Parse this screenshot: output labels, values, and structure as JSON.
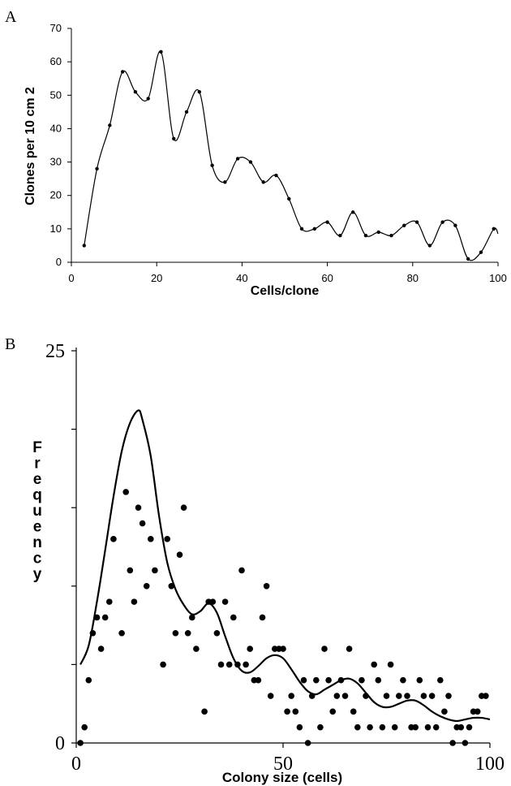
{
  "chart_data": [
    {
      "panel": "A",
      "type": "line",
      "xlabel": "Cells/clone",
      "ylabel": "Clones per 10 cm 2",
      "xlim": [
        0,
        100
      ],
      "ylim": [
        0,
        70
      ],
      "xticks": [
        0,
        20,
        40,
        60,
        80,
        100
      ],
      "yticks": [
        0,
        10,
        20,
        30,
        40,
        50,
        60,
        70
      ],
      "grid": false,
      "x": [
        3,
        6,
        9,
        12,
        15,
        18,
        21,
        24,
        27,
        30,
        33,
        36,
        39,
        42,
        45,
        48,
        51,
        54,
        57,
        60,
        63,
        66,
        69,
        72,
        75,
        78,
        81,
        84,
        87,
        90,
        93,
        96,
        99
      ],
      "y": [
        5,
        28,
        41,
        57,
        51,
        49,
        63,
        37,
        45,
        51,
        29,
        24,
        31,
        30,
        24,
        26,
        19,
        10,
        10,
        12,
        8,
        15,
        8,
        9,
        8,
        11,
        12,
        5,
        12,
        11,
        1,
        3,
        10
      ]
    },
    {
      "panel": "B",
      "type": "scatter",
      "xlabel": "Colony size (cells)",
      "ylabel": "Frequency",
      "xlim": [
        0,
        100
      ],
      "ylim": [
        0,
        25
      ],
      "xticks": [
        0,
        50,
        100
      ],
      "yticks": [
        0,
        25
      ],
      "grid": false,
      "points": [
        [
          1,
          0
        ],
        [
          2,
          1
        ],
        [
          3,
          4
        ],
        [
          4,
          7
        ],
        [
          5,
          8
        ],
        [
          6,
          6
        ],
        [
          7,
          8
        ],
        [
          8,
          9
        ],
        [
          9,
          13
        ],
        [
          11,
          7
        ],
        [
          12,
          16
        ],
        [
          13,
          11
        ],
        [
          14,
          9
        ],
        [
          15,
          15
        ],
        [
          16,
          14
        ],
        [
          17,
          10
        ],
        [
          18,
          13
        ],
        [
          19,
          11
        ],
        [
          21,
          5
        ],
        [
          22,
          13
        ],
        [
          23,
          10
        ],
        [
          24,
          7
        ],
        [
          25,
          12
        ],
        [
          26,
          15
        ],
        [
          27,
          7
        ],
        [
          28,
          8
        ],
        [
          29,
          6
        ],
        [
          31,
          2
        ],
        [
          32,
          9
        ],
        [
          33,
          9
        ],
        [
          34,
          7
        ],
        [
          35,
          5
        ],
        [
          36,
          9
        ],
        [
          37,
          5
        ],
        [
          38,
          8
        ],
        [
          39,
          5
        ],
        [
          40,
          11
        ],
        [
          41,
          5
        ],
        [
          42,
          6
        ],
        [
          43,
          4
        ],
        [
          44,
          4
        ],
        [
          45,
          8
        ],
        [
          46,
          10
        ],
        [
          47,
          3
        ],
        [
          48,
          6
        ],
        [
          49,
          6
        ],
        [
          50,
          6
        ],
        [
          51,
          2
        ],
        [
          52,
          3
        ],
        [
          53,
          2
        ],
        [
          54,
          1
        ],
        [
          55,
          4
        ],
        [
          56,
          0
        ],
        [
          57,
          3
        ],
        [
          58,
          4
        ],
        [
          59,
          1
        ],
        [
          60,
          6
        ],
        [
          61,
          4
        ],
        [
          62,
          2
        ],
        [
          63,
          3
        ],
        [
          64,
          4
        ],
        [
          65,
          3
        ],
        [
          66,
          6
        ],
        [
          67,
          2
        ],
        [
          68,
          1
        ],
        [
          69,
          4
        ],
        [
          70,
          3
        ],
        [
          71,
          1
        ],
        [
          72,
          5
        ],
        [
          73,
          4
        ],
        [
          74,
          1
        ],
        [
          75,
          3
        ],
        [
          76,
          5
        ],
        [
          77,
          1
        ],
        [
          78,
          3
        ],
        [
          79,
          4
        ],
        [
          80,
          3
        ],
        [
          81,
          1
        ],
        [
          82,
          1
        ],
        [
          83,
          4
        ],
        [
          84,
          3
        ],
        [
          85,
          1
        ],
        [
          86,
          3
        ],
        [
          87,
          1
        ],
        [
          88,
          4
        ],
        [
          89,
          2
        ],
        [
          90,
          3
        ],
        [
          91,
          0
        ],
        [
          92,
          1
        ],
        [
          93,
          1
        ],
        [
          94,
          0
        ],
        [
          95,
          1
        ],
        [
          96,
          2
        ],
        [
          97,
          2
        ],
        [
          98,
          3
        ],
        [
          99,
          3
        ]
      ],
      "curve": {
        "x": [
          1,
          3,
          5,
          7,
          9,
          11,
          13,
          15,
          16,
          18,
          20,
          22,
          24,
          26,
          28,
          30,
          32,
          34,
          36,
          38,
          40,
          42,
          44,
          46,
          48,
          50,
          52,
          54,
          56,
          58,
          60,
          62,
          64,
          66,
          68,
          70,
          72,
          74,
          76,
          78,
          80,
          82,
          84,
          86,
          88,
          90,
          92,
          94,
          96,
          98,
          100
        ],
        "y": [
          5,
          6.2,
          9,
          12.3,
          15.7,
          18.6,
          20.4,
          21.2,
          20.6,
          18.3,
          14.5,
          11.5,
          9.8,
          8.8,
          8.2,
          8.4,
          8.9,
          8.3,
          6.8,
          5.4,
          4.6,
          4.5,
          4.9,
          5.4,
          5.6,
          5.4,
          4.7,
          3.9,
          3.3,
          3.1,
          3.4,
          3.7,
          4,
          4.1,
          3.8,
          3.2,
          2.6,
          2.3,
          2.3,
          2.5,
          2.7,
          2.7,
          2.4,
          2,
          1.7,
          1.5,
          1.4,
          1.5,
          1.6,
          1.6,
          1.5
        ]
      }
    }
  ],
  "panel_a_letter": "A",
  "panel_b_letter": "B"
}
